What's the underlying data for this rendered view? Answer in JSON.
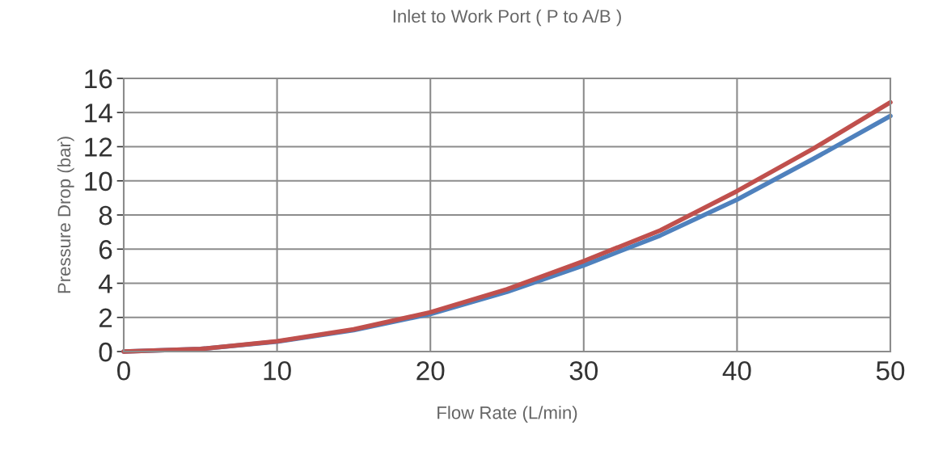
{
  "chart_data": {
    "type": "line",
    "title": "Inlet to Work Port ( P to A/B )",
    "xlabel": "Flow Rate (L/min)",
    "ylabel": "Pressure Drop (bar)",
    "x": [
      0,
      5,
      10,
      15,
      20,
      25,
      30,
      35,
      40,
      45,
      50
    ],
    "series": [
      {
        "color": "#4f81bd",
        "values": [
          0,
          0.15,
          0.58,
          1.25,
          2.2,
          3.5,
          5.05,
          6.8,
          8.9,
          11.3,
          13.8
        ]
      },
      {
        "color": "#c0504d",
        "values": [
          0,
          0.15,
          0.6,
          1.3,
          2.3,
          3.65,
          5.3,
          7.1,
          9.4,
          11.9,
          14.6
        ]
      }
    ],
    "xlim": [
      0,
      50
    ],
    "xticks": [
      0,
      10,
      20,
      30,
      40,
      50
    ],
    "ylim": [
      0,
      16
    ],
    "yticks": [
      0,
      2,
      4,
      6,
      8,
      10,
      12,
      14,
      16
    ],
    "grid": true,
    "legend": false,
    "marker": "none",
    "line_style": "solid"
  }
}
